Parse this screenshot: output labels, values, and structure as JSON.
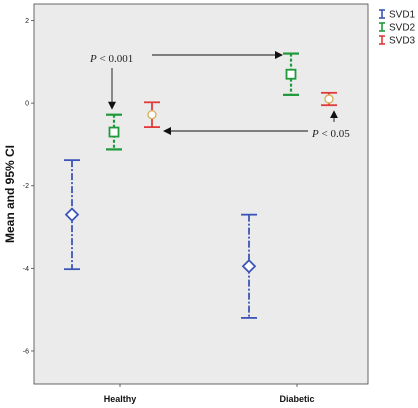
{
  "chart_data": {
    "type": "errorbar",
    "title": "",
    "xlabel": "",
    "ylabel": "Mean and 95% CI",
    "ylim": [
      -6.8,
      2.4
    ],
    "yticks": [
      2,
      0,
      -2,
      -4,
      -6
    ],
    "categories": [
      "Healthy",
      "Diabetic"
    ],
    "grid": false,
    "legend_position": "top-right",
    "series": [
      {
        "name": "SVD1",
        "color": "#3d55b8",
        "marker": "diamond",
        "mean": [
          -2.7,
          -3.95
        ],
        "lower": [
          -4.02,
          -5.2
        ],
        "upper": [
          -1.38,
          -2.7
        ]
      },
      {
        "name": "SVD2",
        "color": "#1e9a3a",
        "marker": "square",
        "mean": [
          -0.7,
          0.7
        ],
        "lower": [
          -1.12,
          0.2
        ],
        "upper": [
          -0.28,
          1.2
        ]
      },
      {
        "name": "SVD3",
        "color": "#e03a3a",
        "marker": "circle",
        "mean": [
          -0.28,
          0.1
        ],
        "lower": [
          -0.58,
          -0.05
        ],
        "upper": [
          0.02,
          0.25
        ]
      }
    ],
    "annotations": [
      {
        "text_pre": "P",
        "text_post": " < 0.001"
      },
      {
        "text_pre": "P",
        "text_post": " < 0.05"
      }
    ]
  }
}
